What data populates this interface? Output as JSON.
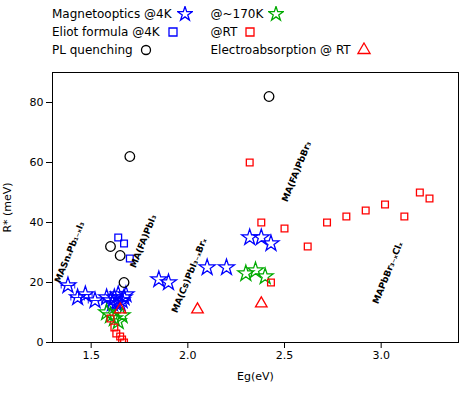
{
  "chart_data": {
    "type": "scatter",
    "xlabel": "Eg(eV)",
    "ylabel": "R* (meV)",
    "xlim": [
      1.3,
      3.4
    ],
    "ylim": [
      0,
      90
    ],
    "xticks": [
      1.5,
      {
        "value": 2.0,
        "label": "2.0"
      },
      2.5,
      {
        "value": 3.0,
        "label": "3.0"
      }
    ],
    "yticks": [
      0,
      20,
      40,
      60,
      80
    ],
    "grid": false,
    "legend": "top",
    "series": [
      {
        "name": "Magnetooptics @4K",
        "color": "#0000ff",
        "marker": "star",
        "x": [
          1.38,
          1.43,
          1.47,
          1.52,
          1.58,
          1.6,
          1.61,
          1.62,
          1.63,
          1.64,
          1.65,
          1.66,
          1.67,
          1.68,
          1.85,
          1.9,
          2.1,
          2.2,
          2.32,
          2.38,
          2.43
        ],
        "values": [
          19,
          15,
          16,
          14,
          15,
          14,
          13,
          15,
          13,
          16,
          13,
          14,
          15,
          16,
          21,
          20,
          25,
          25,
          35,
          35,
          33
        ],
        "x_error": [
          0.035,
          0.035,
          0.035,
          0.035,
          null,
          null,
          null,
          null,
          null,
          null,
          null,
          null,
          null,
          null,
          null,
          null,
          null,
          null,
          null,
          null,
          null
        ]
      },
      {
        "name": "@~170K",
        "color": "#00aa00",
        "marker": "star",
        "x": [
          1.58,
          1.6,
          1.62,
          1.64,
          1.66,
          2.3,
          2.35,
          2.4
        ],
        "values": [
          10,
          9,
          8,
          7,
          9,
          23,
          24,
          22
        ]
      },
      {
        "name": "Eliot formula @4K",
        "color": "#0000ff",
        "marker": "square",
        "x": [
          1.64,
          1.67,
          1.7
        ],
        "values": [
          35,
          33,
          28
        ]
      },
      {
        "name": "@RT",
        "color": "#ff0000",
        "marker": "square",
        "x": [
          1.6,
          1.62,
          1.63,
          1.65,
          1.66,
          1.67,
          2.32,
          2.38,
          2.43,
          2.5,
          2.62,
          2.72,
          2.82,
          2.92,
          3.02,
          3.12,
          3.2,
          3.25
        ],
        "values": [
          8,
          5,
          3,
          2,
          1,
          0,
          60,
          40,
          20,
          38,
          32,
          40,
          42,
          44,
          46,
          42,
          50,
          48
        ]
      },
      {
        "name": "PL quenching",
        "color": "#000000",
        "marker": "circle",
        "x": [
          1.6,
          1.65,
          1.67,
          1.7,
          2.42
        ],
        "values": [
          32,
          29,
          20,
          62,
          82
        ]
      },
      {
        "name": "Electroabsorption @ RT",
        "color": "#ff0000",
        "marker": "triangle",
        "x": [
          1.65,
          2.05,
          2.38
        ],
        "values": [
          11,
          11,
          13
        ]
      }
    ],
    "annotations": [
      {
        "text": "MASnₓPb₁₋ₓI₃",
        "x": 1.325,
        "y": 20
      },
      {
        "text": "MA(FA)PbI₃",
        "x": 1.715,
        "y": 25
      },
      {
        "text": "MA(Cs)PbI₃₋ₓBrₓ",
        "x": 1.93,
        "y": 10
      },
      {
        "text": "MA(FA)PbBr₃",
        "x": 2.5,
        "y": 47
      },
      {
        "text": "MAPbBr₃₋ₓClₓ",
        "x": 2.97,
        "y": 13
      }
    ]
  }
}
